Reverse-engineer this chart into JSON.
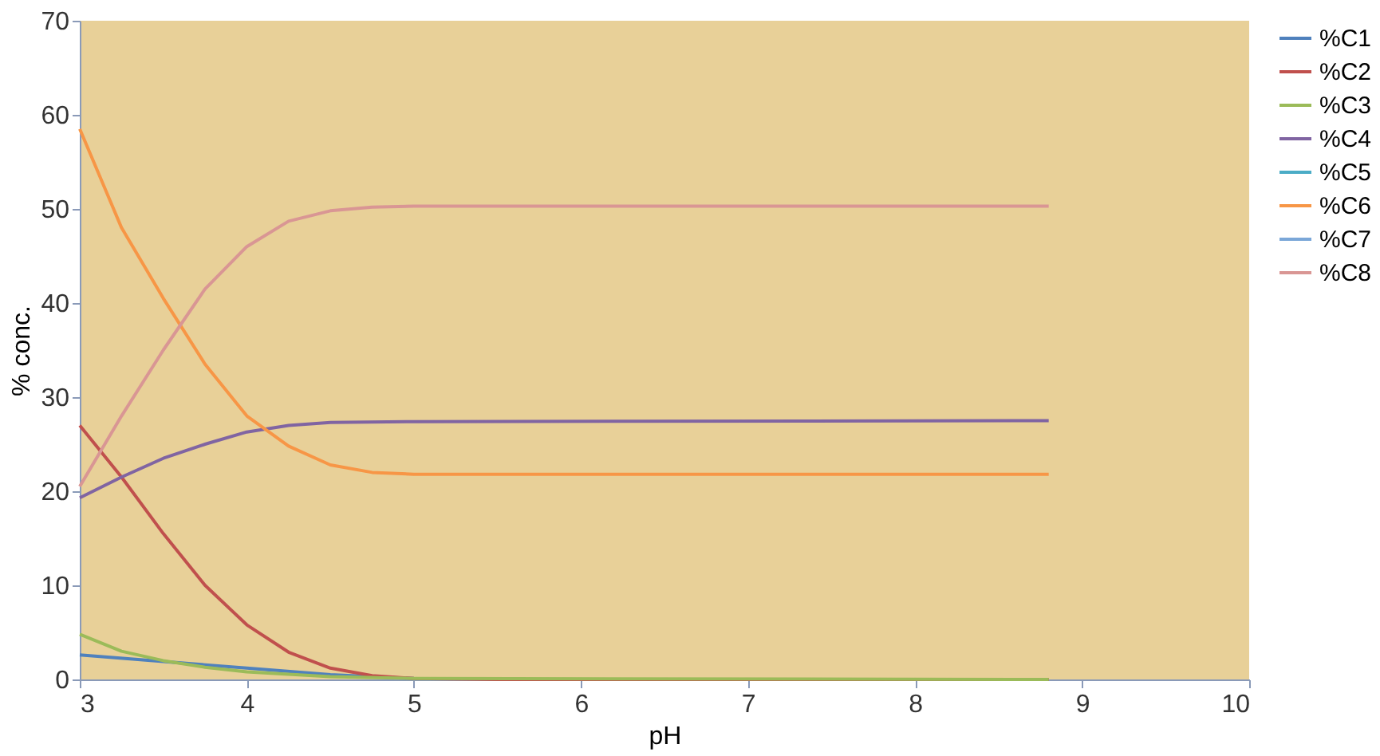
{
  "chart_data": {
    "type": "line",
    "xlabel": "pH",
    "ylabel": "% conc.",
    "xlim": [
      3,
      10
    ],
    "xticks": [
      3,
      4,
      5,
      6,
      7,
      8,
      9,
      10
    ],
    "ylim": [
      0,
      70
    ],
    "yticks": [
      0,
      10,
      20,
      30,
      40,
      50,
      60,
      70
    ],
    "grid": false,
    "legend": "right",
    "marker": "none",
    "line_style": "solid",
    "series": [
      {
        "name": "%C1",
        "color": "#4f81bd",
        "x": [
          3,
          3.5,
          4,
          4.5,
          5
        ],
        "values": [
          2.6,
          1.9,
          1.2,
          0.5,
          0.1
        ]
      },
      {
        "name": "%C2",
        "color": "#c0504d",
        "x": [
          3,
          3.25,
          3.5,
          3.75,
          4,
          4.25,
          4.5,
          4.75,
          5,
          5.5,
          8.8
        ],
        "values": [
          27,
          21.5,
          15.5,
          10,
          5.8,
          2.9,
          1.2,
          0.4,
          0.1,
          0,
          0
        ]
      },
      {
        "name": "%C3",
        "color": "#9bbb59",
        "x": [
          3,
          3.25,
          3.5,
          3.75,
          4,
          4.5,
          5,
          8.8
        ],
        "values": [
          4.8,
          3,
          2,
          1.3,
          0.8,
          0.3,
          0.1,
          0
        ]
      },
      {
        "name": "%C4",
        "color": "#8064a2",
        "x": [
          3,
          3.25,
          3.5,
          3.75,
          4,
          4.25,
          4.5,
          5,
          8.8
        ],
        "values": [
          19.3,
          21.5,
          23.5,
          25,
          26.3,
          27,
          27.3,
          27.4,
          27.5
        ]
      },
      {
        "name": "%C5",
        "color": "#4bacc6"
      },
      {
        "name": "%C6",
        "color": "#f79646",
        "x": [
          3,
          3.25,
          3.5,
          3.75,
          4,
          4.25,
          4.5,
          4.75,
          5,
          8.8
        ],
        "values": [
          58.5,
          48,
          40.5,
          33.5,
          28,
          24.8,
          22.8,
          22,
          21.8,
          21.8
        ]
      },
      {
        "name": "%C7",
        "color": "#7ba7d8"
      },
      {
        "name": "%C8",
        "color": "#d99694",
        "x": [
          3,
          3.25,
          3.5,
          3.75,
          4,
          4.25,
          4.5,
          4.75,
          5,
          8.8
        ],
        "values": [
          20.5,
          28,
          35,
          41.5,
          46,
          48.7,
          49.8,
          50.2,
          50.3,
          50.3
        ]
      }
    ]
  }
}
